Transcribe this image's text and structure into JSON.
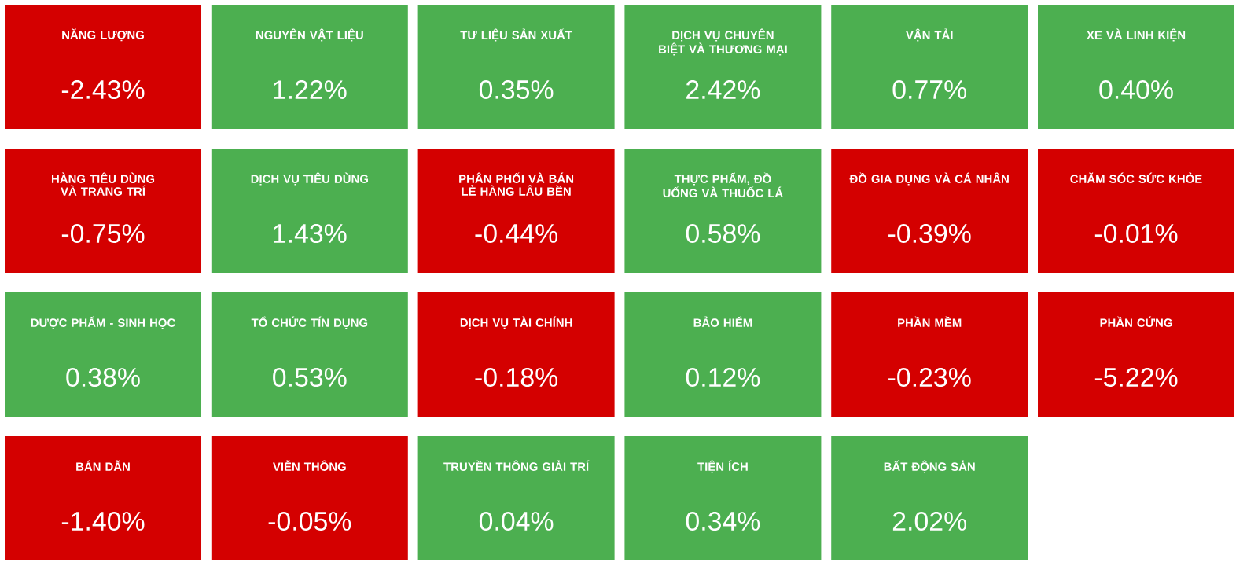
{
  "chart_data": {
    "type": "other",
    "categories": [
      "NĂNG LƯỢNG",
      "NGUYÊN VẬT LIỆU",
      "TƯ LIỆU SẢN XUẤT",
      "DỊCH VỤ CHUYÊN BIỆT VÀ THƯƠNG MẠI",
      "VẬN TẢI",
      "XE VÀ LINH KIỆN",
      "HÀNG TIÊU DÙNG VÀ TRANG TRÍ",
      "DỊCH VỤ TIÊU DÙNG",
      "PHÂN PHỐI VÀ BÁN LẺ HÀNG LÂU BỀN",
      "THỰC PHẨM, ĐỒ UỐNG VÀ THUỐC LÁ",
      "ĐỒ GIA DỤNG VÀ CÁ NHÂN",
      "CHĂM SÓC SỨC KHỎE",
      "DƯỢC PHẨM - SINH HỌC",
      "TỔ CHỨC TÍN DỤNG",
      "DỊCH VỤ TÀI CHÍNH",
      "BẢO HIỂM",
      "PHẦN MỀM",
      "PHẦN CỨNG",
      "BÁN DẪN",
      "VIỄN THÔNG",
      "TRUYỀN THÔNG GIẢI TRÍ",
      "TIỆN ÍCH",
      "BẤT ĐỘNG SẢN"
    ],
    "values": [
      -2.43,
      1.22,
      0.35,
      2.42,
      0.77,
      0.4,
      -0.75,
      1.43,
      -0.44,
      0.58,
      -0.39,
      -0.01,
      0.38,
      0.53,
      -0.18,
      0.12,
      -0.23,
      -5.22,
      -1.4,
      -0.05,
      0.04,
      0.34,
      2.02
    ],
    "value_labels": [
      "-2.43%",
      "1.22%",
      "0.35%",
      "2.42%",
      "0.77%",
      "0.40%",
      "-0.75%",
      "1.43%",
      "-0.44%",
      "0.58%",
      "-0.39%",
      "-0.01%",
      "0.38%",
      "0.53%",
      "-0.18%",
      "0.12%",
      "-0.23%",
      "-5.22%",
      "-1.40%",
      "-0.05%",
      "0.04%",
      "0.34%",
      "2.02%"
    ],
    "colors": [
      "#d40000",
      "#4caf50",
      "#4caf50",
      "#4caf50",
      "#4caf50",
      "#4caf50",
      "#d40000",
      "#4caf50",
      "#d40000",
      "#4caf50",
      "#d40000",
      "#d40000",
      "#4caf50",
      "#4caf50",
      "#d40000",
      "#4caf50",
      "#d40000",
      "#d40000",
      "#d40000",
      "#d40000",
      "#4caf50",
      "#4caf50",
      "#4caf50"
    ]
  }
}
